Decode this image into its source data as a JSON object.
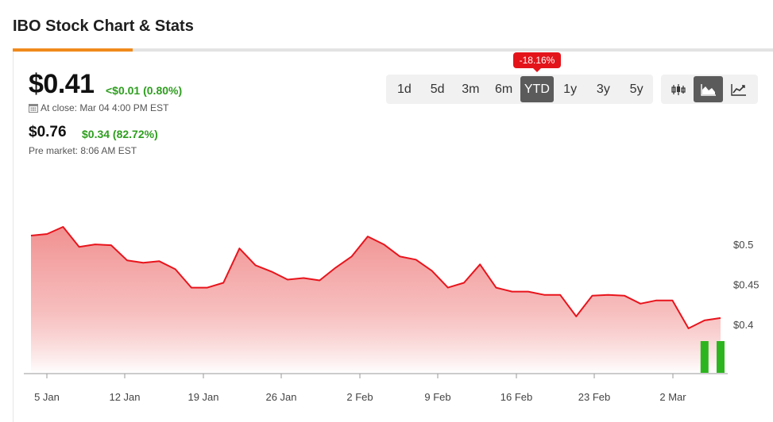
{
  "page": {
    "title": "IBO Stock Chart & Stats"
  },
  "quote": {
    "price": "$0.41",
    "change": "<$0.01 (0.80%)",
    "close_label": "At close: Mar 04 4:00 PM EST",
    "pre_price": "$0.76",
    "pre_change": "$0.34 (82.72%)",
    "pre_label": "Pre market: 8:06 AM EST"
  },
  "ranges": {
    "items": [
      "1d",
      "5d",
      "3m",
      "6m",
      "YTD",
      "1y",
      "3y",
      "5y"
    ],
    "active": "YTD",
    "badge": "-18.16%"
  },
  "chart_types": {
    "items": [
      "candlestick-icon",
      "area-chart-icon",
      "line-chart-icon"
    ],
    "active": "area-chart-icon"
  },
  "colors": {
    "line": "#e8141c",
    "area_top": "#f08a8a",
    "area_bottom": "#ffffff",
    "volume": "#2db51f",
    "accent": "#f08a1c"
  },
  "chart_data": {
    "type": "area",
    "x": [
      "Jan 2",
      "Jan 3",
      "Jan 4",
      "Jan 5",
      "Jan 6",
      "Jan 9",
      "Jan 10",
      "Jan 11",
      "Jan 12",
      "Jan 13",
      "Jan 17",
      "Jan 18",
      "Jan 19",
      "Jan 20",
      "Jan 23",
      "Jan 24",
      "Jan 25",
      "Jan 26",
      "Jan 27",
      "Jan 30",
      "Jan 31",
      "Feb 1",
      "Feb 2",
      "Feb 3",
      "Feb 6",
      "Feb 7",
      "Feb 8",
      "Feb 9",
      "Feb 10",
      "Feb 13",
      "Feb 14",
      "Feb 15",
      "Feb 16",
      "Feb 17",
      "Feb 21",
      "Feb 22",
      "Feb 23",
      "Feb 24",
      "Feb 27",
      "Feb 28",
      "Mar 1",
      "Mar 2",
      "Mar 3",
      "Mar 4"
    ],
    "y": [
      0.511,
      0.513,
      0.522,
      0.497,
      0.5,
      0.499,
      0.48,
      0.477,
      0.479,
      0.469,
      0.446,
      0.446,
      0.452,
      0.495,
      0.474,
      0.466,
      0.456,
      0.458,
      0.455,
      0.471,
      0.485,
      0.51,
      0.5,
      0.485,
      0.481,
      0.467,
      0.446,
      0.452,
      0.475,
      0.446,
      0.441,
      0.441,
      0.437,
      0.437,
      0.41,
      0.436,
      0.437,
      0.436,
      0.426,
      0.43,
      0.43,
      0.395,
      0.405,
      0.408
    ],
    "volume_bars": [
      {
        "x": "Mar 3",
        "value": 1
      },
      {
        "x": "Mar 4",
        "value": 1
      }
    ],
    "x_ticks": [
      "5 Jan",
      "12 Jan",
      "19 Jan",
      "26 Jan",
      "2 Feb",
      "9 Feb",
      "16 Feb",
      "23 Feb",
      "2 Mar"
    ],
    "y_ticks": [
      "$0.5",
      "$0.45",
      "$0.4"
    ],
    "y_tick_values": [
      0.5,
      0.45,
      0.4
    ],
    "ylim": [
      0.3385,
      0.5755
    ],
    "grid": false,
    "legend": "none"
  }
}
